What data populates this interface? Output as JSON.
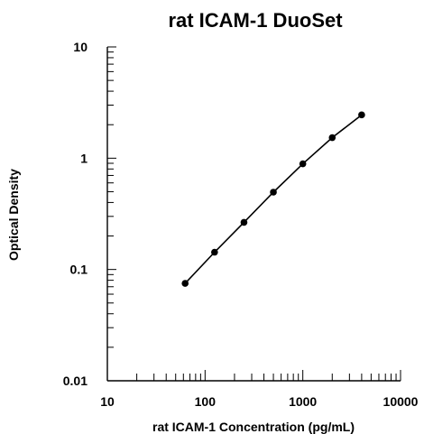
{
  "chart_data": {
    "type": "line",
    "title": "rat ICAM-1 DuoSet",
    "xlabel": "rat ICAM-1 Concentration (pg/mL)",
    "ylabel": "Optical Density",
    "x_scale": "log",
    "y_scale": "log",
    "xlim": [
      10,
      10000
    ],
    "ylim": [
      0.01,
      10
    ],
    "x_tick_labels": [
      "10",
      "100",
      "1000",
      "10000"
    ],
    "y_tick_labels": [
      "0.01",
      "0.1",
      "1",
      "10"
    ],
    "grid": false,
    "series": [
      {
        "x": [
          62.5,
          125,
          250,
          500,
          1000,
          2000,
          4000
        ],
        "y": [
          0.075,
          0.143,
          0.265,
          0.495,
          0.89,
          1.53,
          2.45
        ]
      }
    ]
  }
}
